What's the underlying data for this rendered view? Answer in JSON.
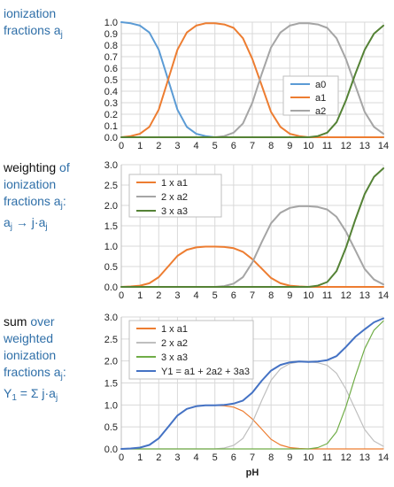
{
  "chart_data": [
    {
      "type": "line",
      "label_parts": [
        {
          "text": "ionization",
          "color": "blue"
        },
        {
          "text": "fractions a",
          "color": "blue"
        },
        {
          "text": "j",
          "color": "blue",
          "sub": true
        }
      ],
      "xlim": [
        0,
        14
      ],
      "ylim": [
        0,
        1.0
      ],
      "xticks": [
        "0",
        "1",
        "2",
        "3",
        "4",
        "5",
        "6",
        "7",
        "8",
        "9",
        "10",
        "11",
        "12",
        "13",
        "14"
      ],
      "yticks": [
        "0.0",
        "0.1",
        "0.2",
        "0.3",
        "0.4",
        "0.5",
        "0.6",
        "0.7",
        "0.8",
        "0.9",
        "1.0"
      ],
      "grid": true,
      "legend_position": "inside-right",
      "series": [
        {
          "name": "a0",
          "color": "#5b9bd5",
          "points": [
            [
              0,
              1.0
            ],
            [
              0.5,
              0.99
            ],
            [
              1,
              0.97
            ],
            [
              1.5,
              0.91
            ],
            [
              2,
              0.76
            ],
            [
              2.5,
              0.5
            ],
            [
              3,
              0.24
            ],
            [
              3.5,
              0.09
            ],
            [
              4,
              0.03
            ],
            [
              4.5,
              0.01
            ],
            [
              5,
              0.0
            ],
            [
              14,
              0.0
            ]
          ]
        },
        {
          "name": "a1",
          "color": "#ed7d31",
          "points": [
            [
              0,
              0.0
            ],
            [
              0.5,
              0.01
            ],
            [
              1,
              0.03
            ],
            [
              1.5,
              0.09
            ],
            [
              2,
              0.24
            ],
            [
              2.5,
              0.5
            ],
            [
              3,
              0.76
            ],
            [
              3.5,
              0.91
            ],
            [
              4,
              0.97
            ],
            [
              4.5,
              0.99
            ],
            [
              5,
              0.99
            ],
            [
              5.5,
              0.98
            ],
            [
              6,
              0.95
            ],
            [
              6.5,
              0.86
            ],
            [
              7,
              0.68
            ],
            [
              7.5,
              0.45
            ],
            [
              8,
              0.22
            ],
            [
              8.5,
              0.09
            ],
            [
              9,
              0.03
            ],
            [
              9.5,
              0.01
            ],
            [
              10,
              0.0
            ],
            [
              14,
              0.0
            ]
          ]
        },
        {
          "name": "a2",
          "color": "#a5a5a5",
          "points": [
            [
              0,
              0.0
            ],
            [
              5,
              0.0
            ],
            [
              5.5,
              0.01
            ],
            [
              6,
              0.04
            ],
            [
              6.5,
              0.12
            ],
            [
              7,
              0.3
            ],
            [
              7.5,
              0.55
            ],
            [
              8,
              0.78
            ],
            [
              8.5,
              0.91
            ],
            [
              9,
              0.97
            ],
            [
              9.5,
              0.99
            ],
            [
              10,
              0.99
            ],
            [
              10.5,
              0.98
            ],
            [
              11,
              0.95
            ],
            [
              11.5,
              0.86
            ],
            [
              12,
              0.68
            ],
            [
              12.5,
              0.45
            ],
            [
              13,
              0.22
            ],
            [
              13.5,
              0.09
            ],
            [
              14,
              0.03
            ]
          ]
        },
        {
          "name": "",
          "color": "#548235",
          "points": [
            [
              0,
              0.0
            ],
            [
              10,
              0.0
            ],
            [
              10.5,
              0.01
            ],
            [
              11,
              0.04
            ],
            [
              11.5,
              0.13
            ],
            [
              12,
              0.32
            ],
            [
              12.5,
              0.55
            ],
            [
              13,
              0.76
            ],
            [
              13.5,
              0.9
            ],
            [
              14,
              0.97
            ]
          ]
        }
      ]
    },
    {
      "type": "line",
      "label_parts": [
        {
          "text": "weighting of",
          "color": "mixed"
        },
        {
          "text": "ionization",
          "color": "blue"
        },
        {
          "text": "fractions a",
          "color": "blue"
        },
        {
          "text": "j",
          "color": "blue",
          "sub": true
        },
        {
          "text": ":",
          "color": "blue"
        },
        {
          "text": "a",
          "color": "blue"
        },
        {
          "text": "j",
          "color": "blue",
          "sub": true
        },
        {
          "text": " → j·a",
          "color": "blue"
        },
        {
          "text": "j",
          "color": "blue",
          "sub": true
        }
      ],
      "xlim": [
        0,
        14
      ],
      "ylim": [
        0,
        3.0
      ],
      "xticks": [
        "0",
        "1",
        "2",
        "3",
        "4",
        "5",
        "6",
        "7",
        "8",
        "9",
        "10",
        "11",
        "12",
        "13",
        "14"
      ],
      "yticks": [
        "0.0",
        "0.5",
        "1.0",
        "1.5",
        "2.0",
        "2.5",
        "3.0"
      ],
      "grid": true,
      "legend_position": "top-left",
      "series": [
        {
          "name": "1 x a1",
          "color": "#ed7d31",
          "points": [
            [
              0,
              0.0
            ],
            [
              0.5,
              0.01
            ],
            [
              1,
              0.03
            ],
            [
              1.5,
              0.09
            ],
            [
              2,
              0.24
            ],
            [
              2.5,
              0.5
            ],
            [
              3,
              0.76
            ],
            [
              3.5,
              0.91
            ],
            [
              4,
              0.97
            ],
            [
              4.5,
              0.99
            ],
            [
              5,
              0.99
            ],
            [
              5.5,
              0.98
            ],
            [
              6,
              0.95
            ],
            [
              6.5,
              0.86
            ],
            [
              7,
              0.68
            ],
            [
              7.5,
              0.45
            ],
            [
              8,
              0.22
            ],
            [
              8.5,
              0.09
            ],
            [
              9,
              0.03
            ],
            [
              9.5,
              0.01
            ],
            [
              10,
              0.0
            ],
            [
              14,
              0.0
            ]
          ]
        },
        {
          "name": "2 x a2",
          "color": "#a5a5a5",
          "points": [
            [
              0,
              0.0
            ],
            [
              5,
              0.0
            ],
            [
              5.5,
              0.02
            ],
            [
              6,
              0.08
            ],
            [
              6.5,
              0.24
            ],
            [
              7,
              0.6
            ],
            [
              7.5,
              1.1
            ],
            [
              8,
              1.56
            ],
            [
              8.5,
              1.82
            ],
            [
              9,
              1.94
            ],
            [
              9.5,
              1.98
            ],
            [
              10,
              1.98
            ],
            [
              10.5,
              1.96
            ],
            [
              11,
              1.9
            ],
            [
              11.5,
              1.72
            ],
            [
              12,
              1.36
            ],
            [
              12.5,
              0.9
            ],
            [
              13,
              0.44
            ],
            [
              13.5,
              0.18
            ],
            [
              14,
              0.06
            ]
          ]
        },
        {
          "name": "3 x a3",
          "color": "#548235",
          "points": [
            [
              0,
              0.0
            ],
            [
              10,
              0.0
            ],
            [
              10.5,
              0.03
            ],
            [
              11,
              0.12
            ],
            [
              11.5,
              0.39
            ],
            [
              12,
              0.96
            ],
            [
              12.5,
              1.65
            ],
            [
              13,
              2.28
            ],
            [
              13.5,
              2.7
            ],
            [
              14,
              2.91
            ]
          ]
        }
      ]
    },
    {
      "type": "line",
      "label_parts": [
        {
          "text": "sum over",
          "color": "mixed2"
        },
        {
          "text": "weighted",
          "color": "blue"
        },
        {
          "text": "ionization",
          "color": "blue"
        },
        {
          "text": "fractions a",
          "color": "blue"
        },
        {
          "text": "j",
          "color": "blue",
          "sub": true
        },
        {
          "text": ":",
          "color": "blue"
        },
        {
          "text": "Y",
          "color": "blue"
        },
        {
          "text": "1",
          "color": "blue",
          "sub": true
        },
        {
          "text": " = Σ j·a",
          "color": "blue"
        },
        {
          "text": "j",
          "color": "blue",
          "sub": true
        }
      ],
      "xlim": [
        0,
        14
      ],
      "ylim": [
        0,
        3.0
      ],
      "xticks": [
        "0",
        "1",
        "2",
        "3",
        "4",
        "5",
        "6",
        "7",
        "8",
        "9",
        "10",
        "11",
        "12",
        "13",
        "14"
      ],
      "yticks": [
        "0.0",
        "0.5",
        "1.0",
        "1.5",
        "2.0",
        "2.5",
        "3.0"
      ],
      "xlabel": "pH",
      "grid": true,
      "legend_position": "top-left",
      "series": [
        {
          "name": "1 x a1",
          "color": "#ed7d31",
          "thin": true,
          "points": [
            [
              0,
              0.0
            ],
            [
              0.5,
              0.01
            ],
            [
              1,
              0.03
            ],
            [
              1.5,
              0.09
            ],
            [
              2,
              0.24
            ],
            [
              2.5,
              0.5
            ],
            [
              3,
              0.76
            ],
            [
              3.5,
              0.91
            ],
            [
              4,
              0.97
            ],
            [
              4.5,
              0.99
            ],
            [
              5,
              0.99
            ],
            [
              5.5,
              0.98
            ],
            [
              6,
              0.95
            ],
            [
              6.5,
              0.86
            ],
            [
              7,
              0.68
            ],
            [
              7.5,
              0.45
            ],
            [
              8,
              0.22
            ],
            [
              8.5,
              0.09
            ],
            [
              9,
              0.03
            ],
            [
              9.5,
              0.01
            ],
            [
              10,
              0.0
            ],
            [
              14,
              0.0
            ]
          ]
        },
        {
          "name": "2 x a2",
          "color": "#bfbfbf",
          "thin": true,
          "points": [
            [
              0,
              0.0
            ],
            [
              5,
              0.0
            ],
            [
              5.5,
              0.02
            ],
            [
              6,
              0.08
            ],
            [
              6.5,
              0.24
            ],
            [
              7,
              0.6
            ],
            [
              7.5,
              1.1
            ],
            [
              8,
              1.56
            ],
            [
              8.5,
              1.82
            ],
            [
              9,
              1.94
            ],
            [
              9.5,
              1.98
            ],
            [
              10,
              1.98
            ],
            [
              10.5,
              1.96
            ],
            [
              11,
              1.9
            ],
            [
              11.5,
              1.72
            ],
            [
              12,
              1.36
            ],
            [
              12.5,
              0.9
            ],
            [
              13,
              0.44
            ],
            [
              13.5,
              0.18
            ],
            [
              14,
              0.06
            ]
          ]
        },
        {
          "name": "3 x a3",
          "color": "#70ad47",
          "thin": true,
          "points": [
            [
              0,
              0.0
            ],
            [
              10,
              0.0
            ],
            [
              10.5,
              0.03
            ],
            [
              11,
              0.12
            ],
            [
              11.5,
              0.39
            ],
            [
              12,
              0.96
            ],
            [
              12.5,
              1.65
            ],
            [
              13,
              2.28
            ],
            [
              13.5,
              2.7
            ],
            [
              14,
              2.91
            ]
          ]
        },
        {
          "name": "Y1 = a1 + 2a2 + 3a3",
          "color": "#4472c4",
          "points": [
            [
              0,
              0.0
            ],
            [
              0.5,
              0.01
            ],
            [
              1,
              0.03
            ],
            [
              1.5,
              0.09
            ],
            [
              2,
              0.24
            ],
            [
              2.5,
              0.5
            ],
            [
              3,
              0.76
            ],
            [
              3.5,
              0.91
            ],
            [
              4,
              0.97
            ],
            [
              4.5,
              0.99
            ],
            [
              5,
              0.99
            ],
            [
              5.5,
              1.0
            ],
            [
              6,
              1.03
            ],
            [
              6.5,
              1.1
            ],
            [
              7,
              1.28
            ],
            [
              7.5,
              1.55
            ],
            [
              8,
              1.78
            ],
            [
              8.5,
              1.91
            ],
            [
              9,
              1.97
            ],
            [
              9.5,
              1.99
            ],
            [
              10,
              1.98
            ],
            [
              10.5,
              1.99
            ],
            [
              11,
              2.02
            ],
            [
              11.5,
              2.11
            ],
            [
              12,
              2.32
            ],
            [
              12.5,
              2.55
            ],
            [
              13,
              2.72
            ],
            [
              13.5,
              2.88
            ],
            [
              14,
              2.97
            ]
          ]
        }
      ]
    }
  ]
}
